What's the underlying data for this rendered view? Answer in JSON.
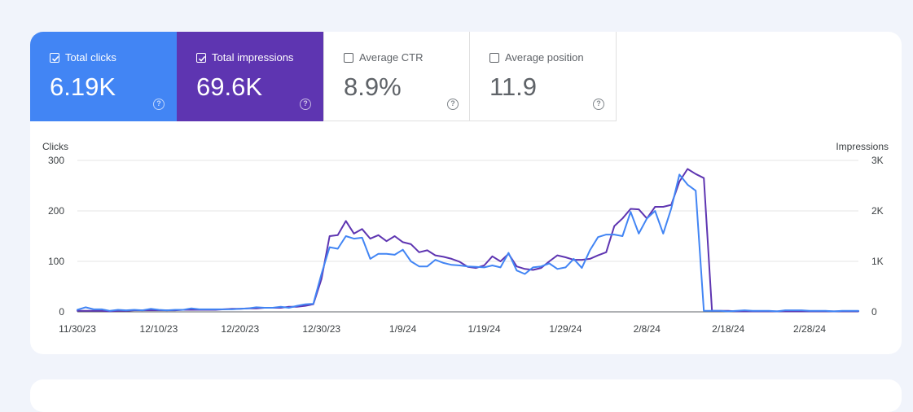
{
  "metrics": [
    {
      "label": "Total clicks",
      "value": "6.19K",
      "checked": true,
      "color": "#4285f4",
      "help_icon": "question-circle-icon"
    },
    {
      "label": "Total impressions",
      "value": "69.6K",
      "checked": true,
      "color": "#5e35b1",
      "help_icon": "question-circle-icon"
    },
    {
      "label": "Average CTR",
      "value": "8.9%",
      "checked": false,
      "help_icon": "question-circle-icon"
    },
    {
      "label": "Average position",
      "value": "11.9",
      "checked": false,
      "help_icon": "question-circle-icon"
    }
  ],
  "chart_data": {
    "type": "line",
    "left_axis_label": "Clicks",
    "right_axis_label": "Impressions",
    "left_ylim": [
      0,
      300
    ],
    "right_ylim": [
      0,
      3000
    ],
    "left_ticks": [
      "0",
      "100",
      "200",
      "300"
    ],
    "right_ticks": [
      "0",
      "1K",
      "2K",
      "3K"
    ],
    "x_tick_labels": [
      "11/30/23",
      "12/10/23",
      "12/20/23",
      "12/30/23",
      "1/9/24",
      "1/19/24",
      "1/29/24",
      "2/8/24",
      "2/18/24",
      "2/28/24"
    ],
    "x_start": "11/30/23",
    "grid": true,
    "series": [
      {
        "name": "Clicks",
        "axis": "left",
        "color": "#4285f4",
        "values": [
          4,
          9,
          5,
          5,
          2,
          4,
          3,
          4,
          3,
          6,
          4,
          3,
          4,
          4,
          7,
          5,
          5,
          5,
          5,
          5,
          6,
          7,
          9,
          8,
          8,
          10,
          8,
          12,
          15,
          16,
          75,
          128,
          125,
          150,
          145,
          147,
          105,
          115,
          115,
          113,
          123,
          100,
          90,
          90,
          103,
          97,
          93,
          92,
          90,
          89,
          88,
          92,
          88,
          117,
          82,
          75,
          88,
          90,
          96,
          85,
          88,
          105,
          87,
          122,
          148,
          153,
          153,
          150,
          198,
          155,
          185,
          200,
          155,
          205,
          272,
          252,
          240,
          2,
          2,
          2,
          1,
          2,
          3,
          2,
          2,
          2,
          1,
          3,
          3,
          3,
          2,
          2,
          2,
          1,
          2,
          2,
          2
        ]
      },
      {
        "name": "Impressions",
        "axis": "right",
        "color": "#5e35b1",
        "values": [
          20,
          20,
          20,
          20,
          10,
          20,
          20,
          30,
          30,
          30,
          30,
          30,
          30,
          40,
          40,
          40,
          40,
          40,
          50,
          60,
          60,
          70,
          70,
          80,
          80,
          80,
          100,
          100,
          120,
          150,
          650,
          1500,
          1520,
          1800,
          1550,
          1640,
          1450,
          1520,
          1400,
          1500,
          1380,
          1340,
          1180,
          1220,
          1120,
          1090,
          1050,
          990,
          890,
          870,
          920,
          1100,
          1000,
          1150,
          900,
          850,
          830,
          870,
          1000,
          1120,
          1080,
          1030,
          1030,
          1050,
          1120,
          1180,
          1700,
          1850,
          2040,
          2030,
          1850,
          2080,
          2080,
          2120,
          2580,
          2830,
          2730,
          2650,
          20,
          20,
          20,
          10,
          10,
          10,
          10,
          10,
          10,
          10,
          10,
          10,
          10,
          10,
          10,
          10,
          10,
          10,
          10
        ]
      }
    ]
  }
}
